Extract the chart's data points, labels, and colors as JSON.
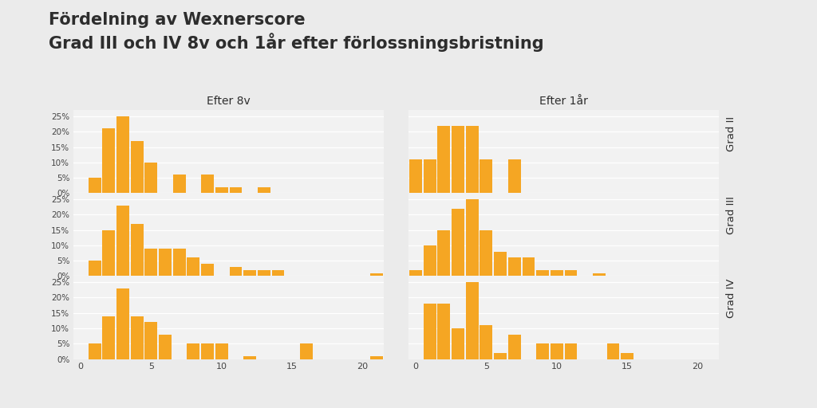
{
  "title": "Fördelning av Wexnerscore\nGrad III och IV 8v och 1år efter förlossningsbristning",
  "col_titles": [
    "Efter 8v",
    "Efter 1år"
  ],
  "row_labels": [
    "Grad II",
    "Grad III",
    "Grad IV"
  ],
  "bar_color": "#F5A623",
  "background_color": "#EBEBEB",
  "plot_background": "#F2F2F2",
  "ylim": [
    0,
    0.27
  ],
  "yticks": [
    0,
    0.05,
    0.1,
    0.15,
    0.2,
    0.25
  ],
  "ytick_labels": [
    "0%",
    "5%",
    "10%",
    "15%",
    "20%",
    "25%"
  ],
  "xticks": [
    0,
    5,
    10,
    15,
    20
  ],
  "data": {
    "8v_GradII": [
      0,
      0.05,
      0.21,
      0.25,
      0.17,
      0.1,
      0,
      0.06,
      0,
      0.06,
      0.02,
      0.02,
      0,
      0.02,
      0,
      0,
      0,
      0,
      0,
      0,
      0,
      0
    ],
    "8v_GradIII": [
      0,
      0.05,
      0.15,
      0.23,
      0.17,
      0.09,
      0.09,
      0.09,
      0.06,
      0.04,
      0,
      0.03,
      0.02,
      0.02,
      0.02,
      0,
      0,
      0,
      0,
      0,
      0,
      0.01
    ],
    "8v_GradIV": [
      0,
      0.05,
      0.14,
      0.23,
      0.14,
      0.12,
      0.08,
      0,
      0.05,
      0.05,
      0.05,
      0,
      0.01,
      0,
      0,
      0,
      0.05,
      0,
      0,
      0,
      0,
      0.01
    ],
    "1yr_GradII": [
      0.11,
      0.11,
      0.22,
      0.22,
      0.22,
      0.11,
      0,
      0.11,
      0,
      0,
      0,
      0,
      0,
      0,
      0,
      0,
      0,
      0,
      0,
      0,
      0,
      0
    ],
    "1yr_GradIII": [
      0.02,
      0.1,
      0.15,
      0.22,
      0.25,
      0.15,
      0.08,
      0.06,
      0.06,
      0.02,
      0.02,
      0.02,
      0,
      0.01,
      0,
      0,
      0,
      0,
      0,
      0,
      0,
      0
    ],
    "1yr_GradIV": [
      0,
      0.18,
      0.18,
      0.1,
      0.25,
      0.11,
      0.02,
      0.08,
      0,
      0.05,
      0.05,
      0.05,
      0,
      0,
      0.05,
      0.02,
      0,
      0,
      0,
      0,
      0,
      0
    ]
  }
}
